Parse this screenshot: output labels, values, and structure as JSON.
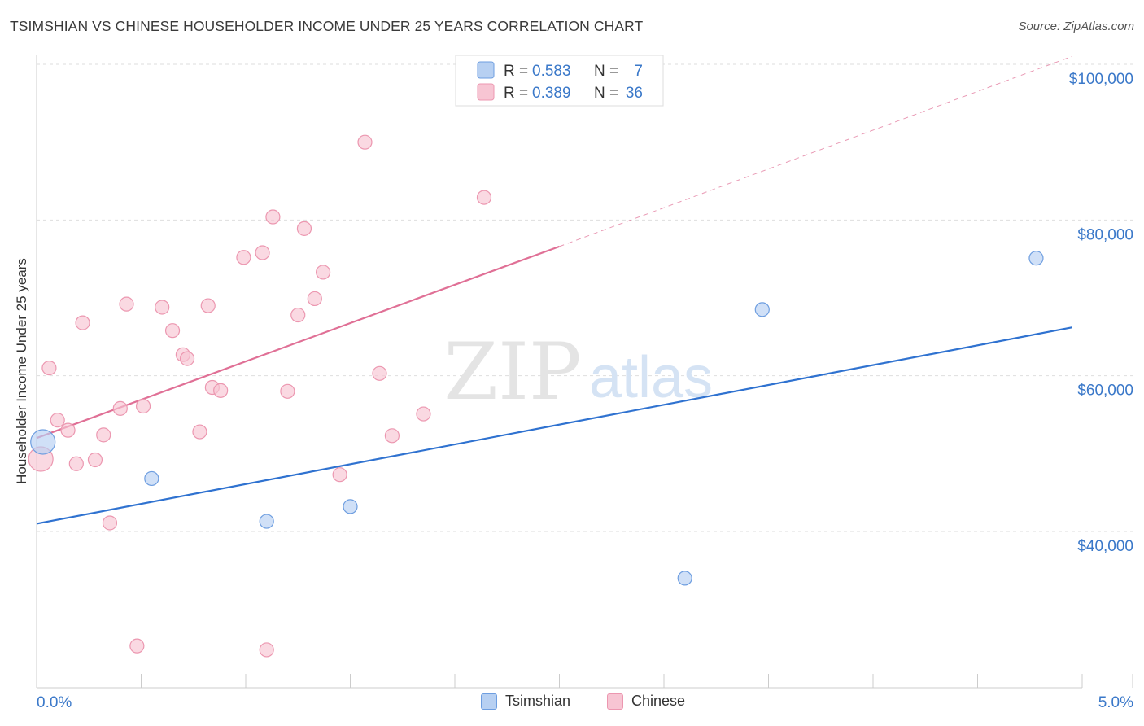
{
  "title": "TSIMSHIAN VS CHINESE HOUSEHOLDER INCOME UNDER 25 YEARS CORRELATION CHART",
  "source": "Source: ZipAtlas.com",
  "watermark": {
    "zip": "ZIP",
    "atlas": "atlas"
  },
  "colors": {
    "blue_fill": "#b7d0f2",
    "blue_stroke": "#6e9ee0",
    "blue_line": "#2f72d0",
    "pink_fill": "#f7c5d3",
    "pink_stroke": "#ec97b0",
    "pink_line": "#e07096",
    "axis_text": "#3a78c9",
    "grid": "#dedede"
  },
  "legend": [
    {
      "r_label": "R = ",
      "r_value": "0.583",
      "n_label": "N = ",
      "n_value": "7"
    },
    {
      "r_label": "R = ",
      "r_value": "0.389",
      "n_label": "N = ",
      "n_value": "36"
    }
  ],
  "chart_data": {
    "type": "scatter",
    "title": "TSIMSHIAN VS CHINESE HOUSEHOLDER INCOME UNDER 25 YEARS CORRELATION CHART",
    "xlabel": "",
    "ylabel": "Householder Income Under 25 years",
    "xlim": [
      0,
      5
    ],
    "ylim": [
      22000,
      102000
    ],
    "x_tick_labels": [
      "0.0%",
      "5.0%"
    ],
    "y_ticks": [
      40000,
      60000,
      80000,
      100000
    ],
    "y_tick_labels": [
      "$40,000",
      "$60,000",
      "$80,000",
      "$100,000"
    ],
    "series": [
      {
        "name": "Tsimshian",
        "color": "blue",
        "points": [
          {
            "x": 0.03,
            "y": 51500,
            "big": true
          },
          {
            "x": 0.55,
            "y": 46800
          },
          {
            "x": 1.1,
            "y": 41300
          },
          {
            "x": 1.5,
            "y": 43200
          },
          {
            "x": 3.1,
            "y": 34000
          },
          {
            "x": 3.47,
            "y": 68500
          },
          {
            "x": 4.78,
            "y": 75100
          }
        ],
        "trend": {
          "x0": 0.0,
          "y0": 41000,
          "x1": 4.95,
          "y1": 66200
        }
      },
      {
        "name": "Chinese",
        "color": "pink",
        "points": [
          {
            "x": 0.02,
            "y": 49300,
            "big": true
          },
          {
            "x": 0.06,
            "y": 61000
          },
          {
            "x": 0.1,
            "y": 54300
          },
          {
            "x": 0.15,
            "y": 53000
          },
          {
            "x": 0.19,
            "y": 48700
          },
          {
            "x": 0.22,
            "y": 66800
          },
          {
            "x": 0.28,
            "y": 49200
          },
          {
            "x": 0.32,
            "y": 52400
          },
          {
            "x": 0.35,
            "y": 41100
          },
          {
            "x": 0.4,
            "y": 55800
          },
          {
            "x": 0.43,
            "y": 69200
          },
          {
            "x": 0.48,
            "y": 25300
          },
          {
            "x": 0.51,
            "y": 56100
          },
          {
            "x": 0.6,
            "y": 68800
          },
          {
            "x": 0.65,
            "y": 65800
          },
          {
            "x": 0.7,
            "y": 62700
          },
          {
            "x": 0.72,
            "y": 62200
          },
          {
            "x": 0.78,
            "y": 52800
          },
          {
            "x": 0.82,
            "y": 69000
          },
          {
            "x": 0.84,
            "y": 58500
          },
          {
            "x": 0.88,
            "y": 58100
          },
          {
            "x": 0.99,
            "y": 75200
          },
          {
            "x": 1.08,
            "y": 75800
          },
          {
            "x": 1.1,
            "y": 24800
          },
          {
            "x": 1.13,
            "y": 80400
          },
          {
            "x": 1.2,
            "y": 58000
          },
          {
            "x": 1.25,
            "y": 67800
          },
          {
            "x": 1.28,
            "y": 78900
          },
          {
            "x": 1.33,
            "y": 69900
          },
          {
            "x": 1.37,
            "y": 73300
          },
          {
            "x": 1.45,
            "y": 47300
          },
          {
            "x": 1.57,
            "y": 90000
          },
          {
            "x": 1.64,
            "y": 60300
          },
          {
            "x": 1.7,
            "y": 52300
          },
          {
            "x": 1.85,
            "y": 55100
          },
          {
            "x": 2.14,
            "y": 82900
          }
        ],
        "trend": {
          "x0": 0.0,
          "y0": 52000,
          "x1": 2.5,
          "y1": 76600
        },
        "trend_extension": {
          "x0": 2.5,
          "y0": 76600,
          "x1": 4.95,
          "y1": 101000
        }
      }
    ]
  },
  "bottom_legend": [
    {
      "label": "Tsimshian"
    },
    {
      "label": "Chinese"
    }
  ]
}
